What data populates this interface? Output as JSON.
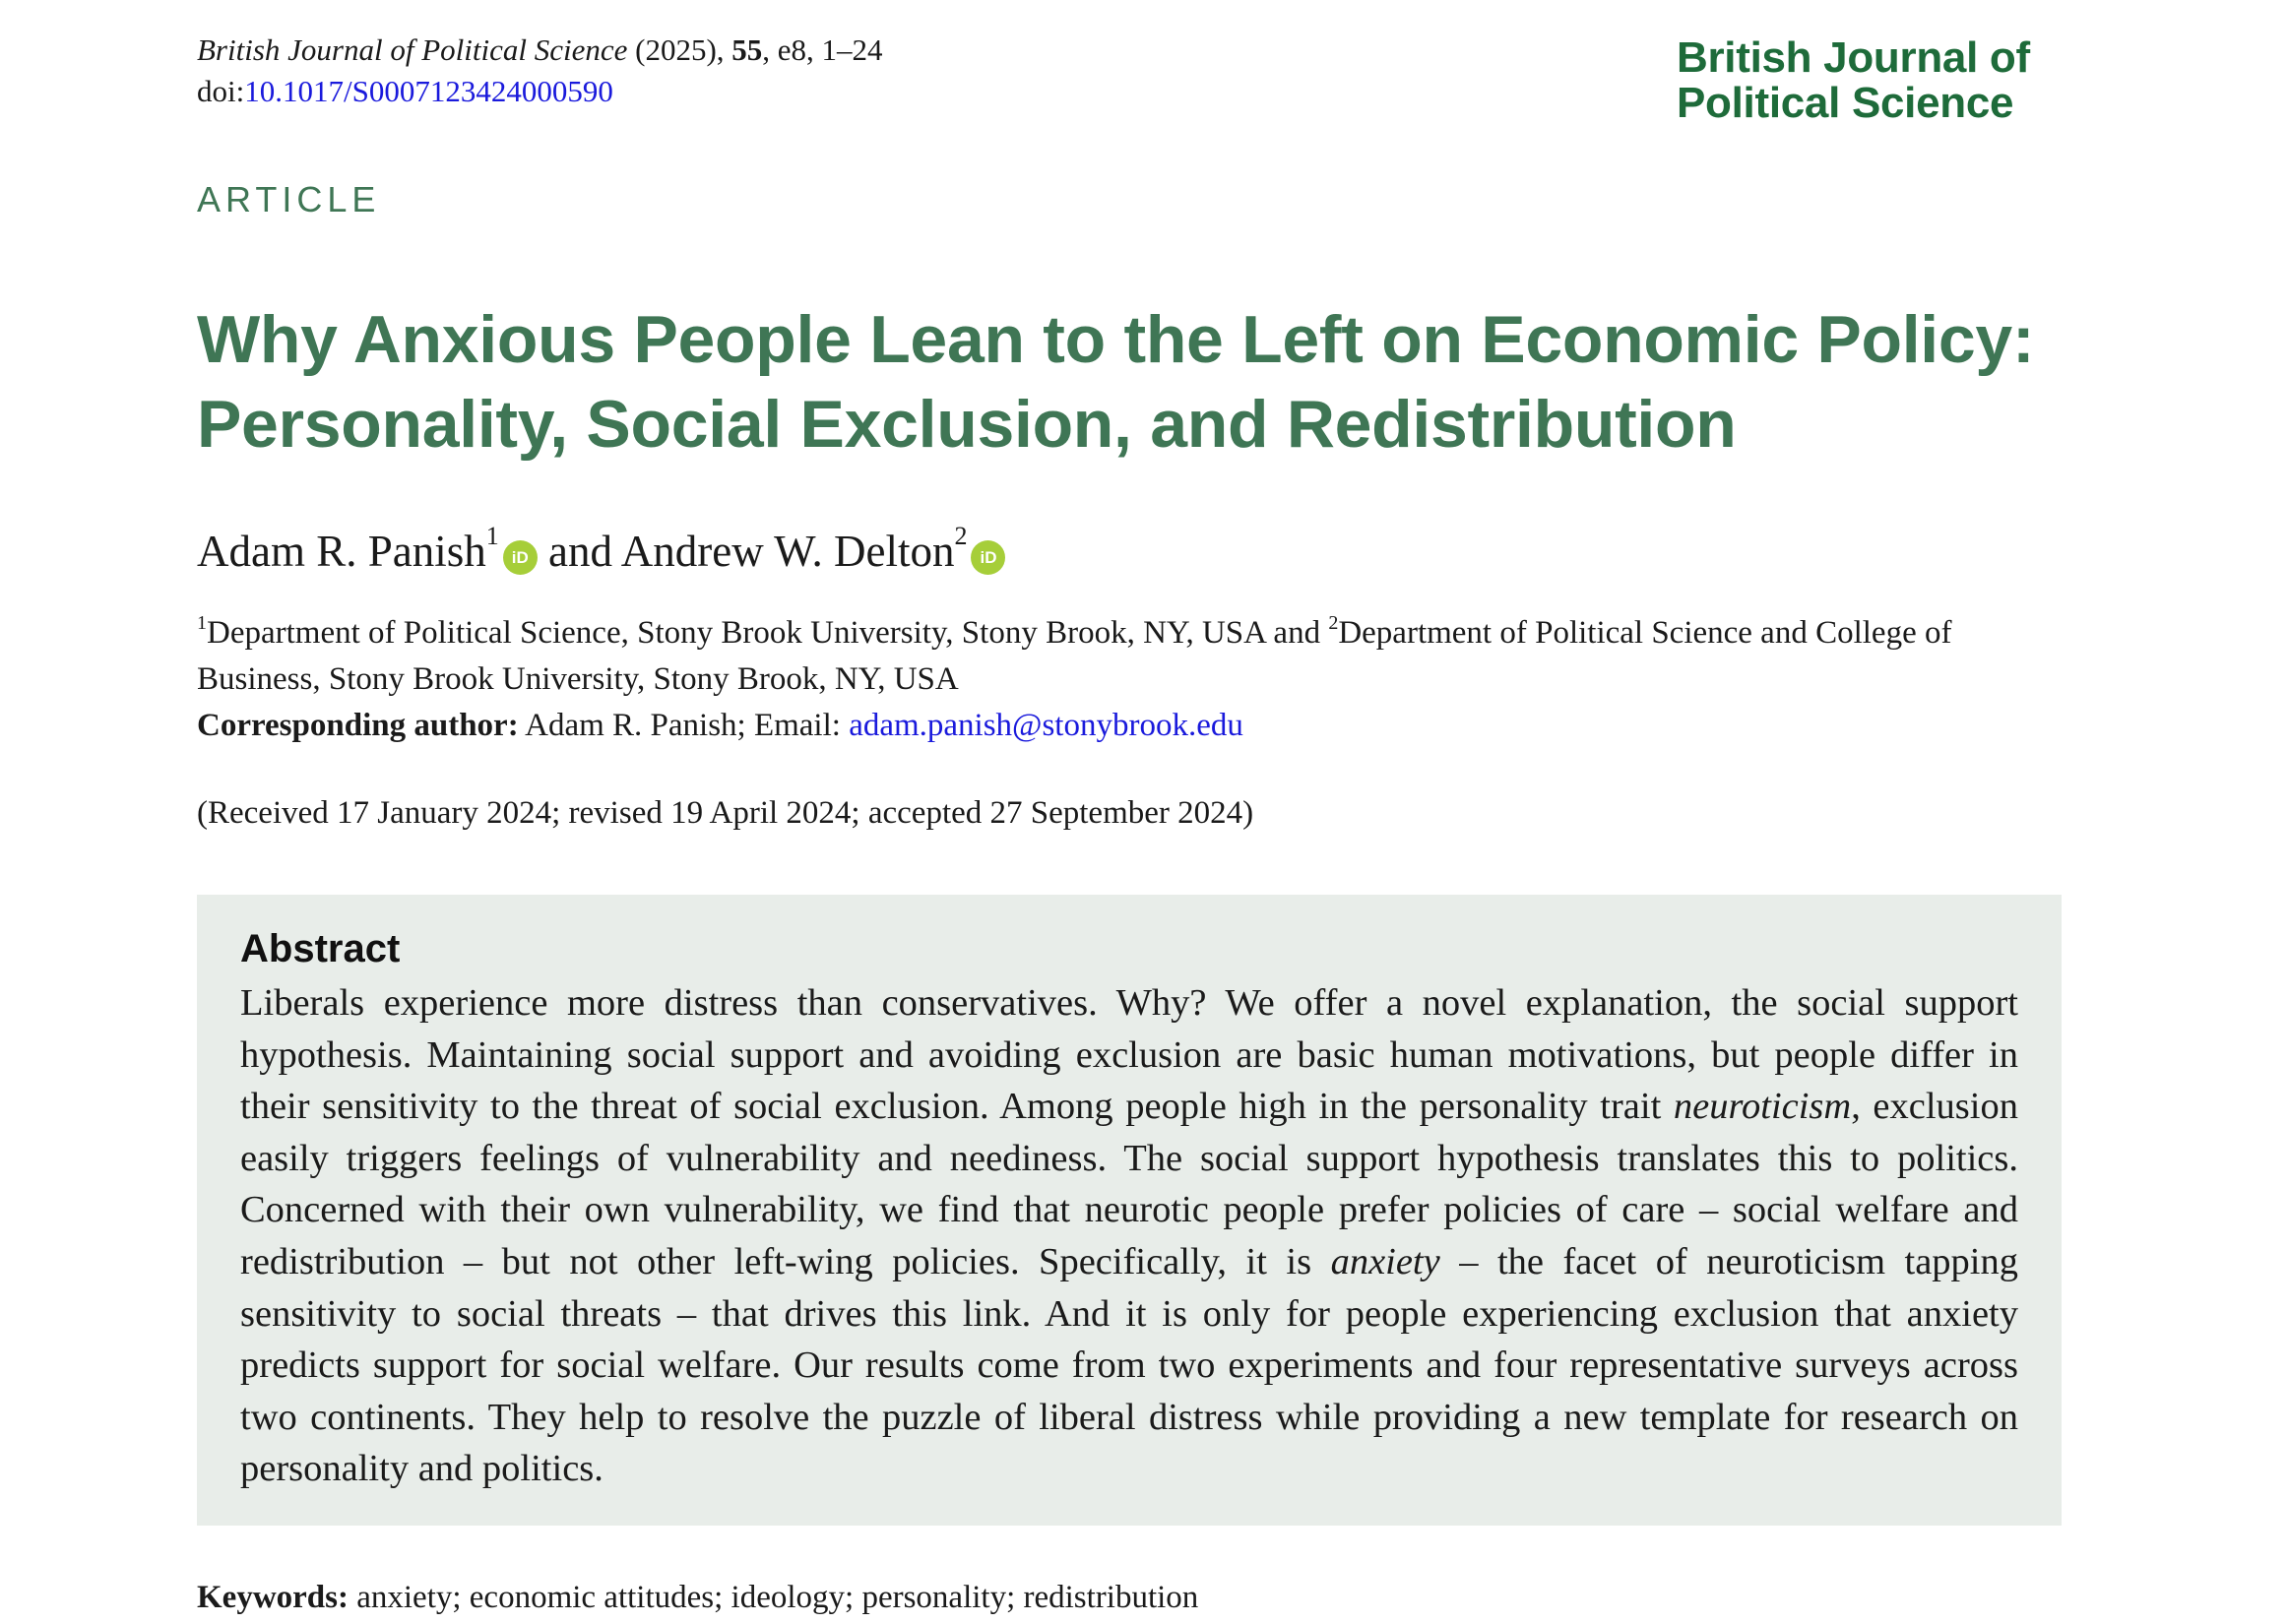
{
  "header": {
    "journal_name": "British Journal of Political Science",
    "citation_rest_1": " (2025), ",
    "volume": "55",
    "citation_rest_2": ", e8, 1–24",
    "doi_label": "doi:",
    "doi": "10.1017/S0007123424000590",
    "logo_line_1": "British Journal of",
    "logo_line_2": "Political Science"
  },
  "article_type": "ARTICLE",
  "title": "Why Anxious People Lean to the Left on Economic Policy: Personality, Social Exclusion, and Redistribution",
  "authors": {
    "author_1": "Adam R. Panish",
    "author_1_sup": "1",
    "connector": " and ",
    "author_2": "Andrew W. Delton",
    "author_2_sup": "2",
    "orcid_label": "iD"
  },
  "affiliations": {
    "sup_1": "1",
    "text_1": "Department of Political Science, Stony Brook University, Stony Brook, NY, USA and ",
    "sup_2": "2",
    "text_2": "Department of Political Science and College of Business, Stony Brook University, Stony Brook, NY, USA",
    "corresponding_label": "Corresponding author:",
    "corresponding_text": " Adam R. Panish; Email: ",
    "email": "adam.panish@stonybrook.edu"
  },
  "history": "(Received 17 January 2024; revised 19 April 2024; accepted 27 September 2024)",
  "abstract": {
    "heading": "Abstract",
    "part_1": "Liberals experience more distress than conservatives. Why? We offer a novel explanation, the social support hypothesis. Maintaining social support and avoiding exclusion are basic human motivations, but people differ in their sensitivity to the threat of social exclusion. Among people high in the personality trait ",
    "italic_1": "neuroticism",
    "part_2": ", exclusion easily triggers feelings of vulnerability and neediness. The social support hypothesis translates this to politics. Concerned with their own vulnerability, we find that neurotic people prefer policies of care – social welfare and redistribution – but not other left-wing policies. Specifically, it is ",
    "italic_2": "anxiety",
    "part_3": " – the facet of neuroticism tapping sensitivity to social threats – that drives this link. And it is only for people experiencing exclusion that anxiety predicts support for social welfare. Our results come from two experiments and four representative surveys across two continents. They help to resolve the puzzle of liberal distress while providing a new template for research on personality and politics."
  },
  "keywords": {
    "label": "Keywords:",
    "text": " anxiety; economic attitudes; ideology; personality; redistribution"
  },
  "colors": {
    "accent_green": "#3f7655",
    "logo_green": "#1e6b3a",
    "abstract_bg": "#e8ede9",
    "link_blue": "#1a1adc",
    "orcid_green": "#a6ce39"
  }
}
